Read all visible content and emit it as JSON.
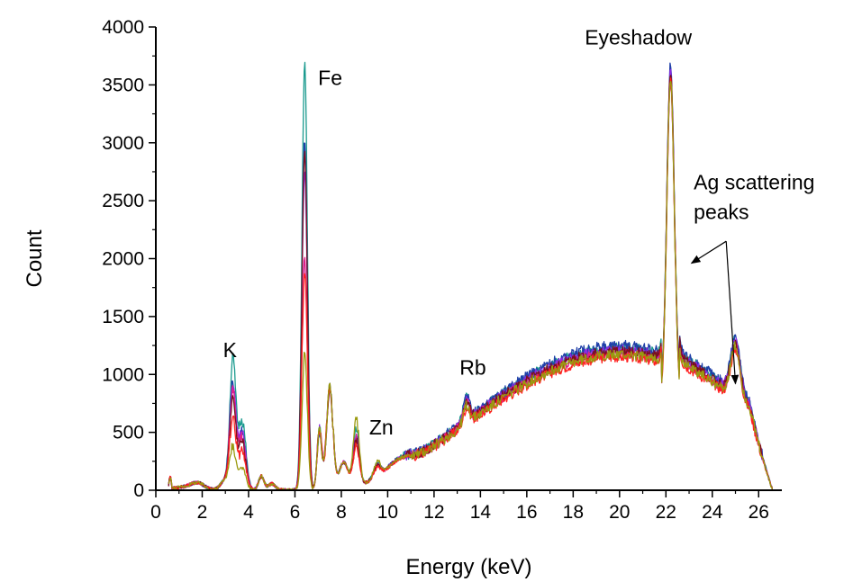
{
  "chart_data": {
    "type": "line",
    "title": "",
    "xlabel": "Energy (keV)",
    "ylabel": "Count",
    "xlim": [
      0,
      27
    ],
    "ylim": [
      0,
      4000
    ],
    "x_ticks": [
      0,
      2,
      4,
      6,
      8,
      10,
      12,
      14,
      16,
      18,
      20,
      22,
      24,
      26
    ],
    "y_ticks": [
      0,
      500,
      1000,
      1500,
      2000,
      2500,
      3000,
      3500,
      4000
    ],
    "grid": false,
    "legend": "none",
    "annotations": [
      {
        "text": "Eyeshadow",
        "x": 18.5,
        "y": 3850
      },
      {
        "text": "Fe",
        "x": 7.0,
        "y": 3500
      },
      {
        "text": "K",
        "x": 2.9,
        "y": 1150
      },
      {
        "text": "Zn",
        "x": 9.2,
        "y": 480
      },
      {
        "text": "Rb",
        "x": 13.1,
        "y": 1000
      },
      {
        "text": "Ag scattering",
        "x": 23.2,
        "y": 2600
      },
      {
        "text": "peaks",
        "x": 23.2,
        "y": 2340
      }
    ],
    "arrows": [
      {
        "from": [
          24.6,
          2150
        ],
        "to": [
          23.1,
          1960
        ]
      },
      {
        "from": [
          24.6,
          2150
        ],
        "to": [
          25.0,
          920
        ]
      }
    ],
    "series": [
      {
        "color": "#1a9a8e",
        "K": 1100,
        "Fe": 3690,
        "Zn": 480,
        "Rb": 760,
        "Ag": 2800,
        "Agb": 830,
        "bg": 1230,
        "seed": 1
      },
      {
        "color": "#1f3fa8",
        "K": 900,
        "Fe": 3020,
        "Zn": 430,
        "Rb": 740,
        "Ag": 2870,
        "Agb": 820,
        "bg": 1250,
        "seed": 2
      },
      {
        "color": "#8a2be2",
        "K": 880,
        "Fe": 2800,
        "Zn": 420,
        "Rb": 730,
        "Ag": 2820,
        "Agb": 810,
        "bg": 1210,
        "seed": 3
      },
      {
        "color": "#e0218a",
        "K": 820,
        "Fe": 2000,
        "Zn": 400,
        "Rb": 720,
        "Ag": 2760,
        "Agb": 800,
        "bg": 1180,
        "seed": 4
      },
      {
        "color": "#7a1020",
        "K": 760,
        "Fe": 2950,
        "Zn": 390,
        "Rb": 700,
        "Ag": 2840,
        "Agb": 790,
        "bg": 1200,
        "seed": 5
      },
      {
        "color": "#ff2020",
        "K": 600,
        "Fe": 1900,
        "Zn": 350,
        "Rb": 680,
        "Ag": 2790,
        "Agb": 780,
        "bg": 1150,
        "seed": 6
      },
      {
        "color": "#9a9a10",
        "K": 350,
        "Fe": 1170,
        "Zn": 560,
        "Rb": 690,
        "Ag": 2780,
        "Agb": 790,
        "bg": 1170,
        "seed": 7
      }
    ]
  }
}
